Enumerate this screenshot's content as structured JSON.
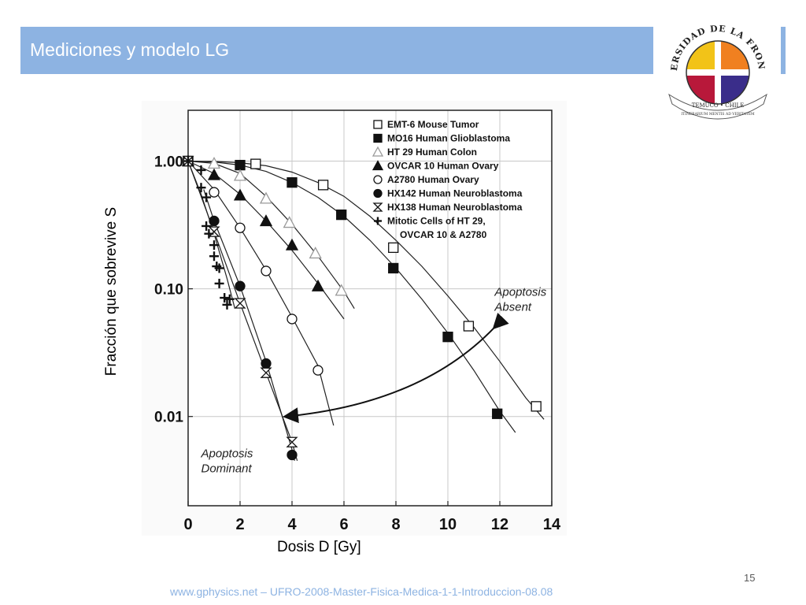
{
  "slide": {
    "title": "Mediciones y modelo LG",
    "page_number": "15",
    "footer": "www.gphysics.net – UFRO-2008-Master-Fisica-Medica-1-1-Introduccion-08.08",
    "title_bar_color": "#8db3e2"
  },
  "logo": {
    "top_text": "UNIVERSIDAD DE LA FRONTERA",
    "bottom_text": "TEMUCO • CHILE",
    "motto": "ITINERARIUM MENTIS AD VERITATEM"
  },
  "chart_data": {
    "type": "scatter",
    "title": "",
    "xlabel": "Dosis D [Gy]",
    "ylabel": "Fracción que sobrevive S",
    "xlim": [
      0,
      14
    ],
    "ylim": [
      0.002,
      2.5
    ],
    "yscale": "log",
    "x_ticks": [
      "0",
      "2",
      "4",
      "6",
      "8",
      "10",
      "12",
      "14"
    ],
    "y_ticks": [
      {
        "value": 1.0,
        "label": "1.00"
      },
      {
        "value": 0.1,
        "label": "0.10"
      },
      {
        "value": 0.01,
        "label": "0.01"
      }
    ],
    "grid": true,
    "legend_position": "top-right",
    "series": [
      {
        "name": "EMT-6 Mouse Tumor",
        "marker": "open-square",
        "x": [
          0,
          2.6,
          5.2,
          7.9,
          10.8,
          13.4
        ],
        "y": [
          1.0,
          0.95,
          0.65,
          0.21,
          0.051,
          0.012
        ],
        "curve": {
          "x": [
            0,
            1,
            2,
            3,
            4,
            5,
            6,
            7,
            8,
            9,
            10,
            11,
            12,
            13,
            13.7
          ],
          "y": [
            1.0,
            0.995,
            0.97,
            0.92,
            0.82,
            0.68,
            0.53,
            0.37,
            0.24,
            0.15,
            0.088,
            0.05,
            0.027,
            0.014,
            0.0095
          ]
        }
      },
      {
        "name": "MO16 Human Glioblastoma",
        "marker": "filled-square",
        "x": [
          0,
          2,
          4,
          5.9,
          7.9,
          10,
          11.9
        ],
        "y": [
          1.0,
          0.93,
          0.68,
          0.38,
          0.145,
          0.042,
          0.0105
        ],
        "curve": {
          "x": [
            0,
            1,
            2,
            3,
            4,
            5,
            6,
            7,
            8,
            9,
            10,
            11,
            12,
            12.6
          ],
          "y": [
            1.0,
            0.985,
            0.93,
            0.83,
            0.68,
            0.52,
            0.37,
            0.24,
            0.145,
            0.083,
            0.045,
            0.023,
            0.011,
            0.0075
          ]
        }
      },
      {
        "name": "HT 29 Human Colon",
        "marker": "open-triangle",
        "x": [
          0,
          1,
          2,
          3,
          3.9,
          4.9,
          5.9
        ],
        "y": [
          1.0,
          0.96,
          0.77,
          0.51,
          0.33,
          0.19,
          0.097
        ],
        "curve": {
          "x": [
            0,
            1,
            2,
            3,
            4,
            5,
            6,
            6.4
          ],
          "y": [
            1.0,
            0.96,
            0.8,
            0.53,
            0.32,
            0.18,
            0.095,
            0.07
          ]
        }
      },
      {
        "name": "OVCAR 10 Human Ovary",
        "marker": "filled-triangle",
        "x": [
          0,
          1,
          2,
          3,
          4,
          5
        ],
        "y": [
          1.0,
          0.78,
          0.54,
          0.34,
          0.22,
          0.105
        ],
        "curve": {
          "x": [
            0,
            1,
            2,
            3,
            4,
            5,
            6
          ],
          "y": [
            1.0,
            0.8,
            0.55,
            0.34,
            0.2,
            0.11,
            0.058
          ]
        }
      },
      {
        "name": "A2780 Human Ovary",
        "marker": "open-circle",
        "x": [
          0,
          1,
          2,
          3,
          4,
          5
        ],
        "y": [
          1.0,
          0.57,
          0.3,
          0.138,
          0.058,
          0.023
        ],
        "curve": {
          "x": [
            0,
            1,
            2,
            3,
            4,
            5,
            5.6
          ],
          "y": [
            1.0,
            0.6,
            0.3,
            0.14,
            0.06,
            0.025,
            0.0085
          ]
        }
      },
      {
        "name": "HX142 Human Neuroblastoma",
        "marker": "filled-circle",
        "x": [
          1,
          2,
          3,
          4
        ],
        "y": [
          0.34,
          0.105,
          0.026,
          0.005
        ],
        "curve": {
          "x": [
            0.6,
            1,
            2,
            3,
            4,
            4.1
          ],
          "y": [
            0.6,
            0.34,
            0.105,
            0.027,
            0.0055,
            0.0045
          ]
        }
      },
      {
        "name": "HX138 Human Neuroblastoma",
        "marker": "hourglass",
        "x": [
          0,
          1,
          2,
          3,
          4
        ],
        "y": [
          1.0,
          0.28,
          0.077,
          0.022,
          0.0063
        ],
        "curve": {
          "x": [
            0,
            1,
            2,
            3,
            4,
            4.2
          ],
          "y": [
            1.0,
            0.28,
            0.077,
            0.022,
            0.0063,
            0.0045
          ]
        }
      },
      {
        "name": "Mitotic Cells of HT 29, OVCAR 10 & A2780",
        "marker": "cross",
        "x": [
          0,
          0.5,
          0.5,
          0.7,
          0.7,
          0.8,
          1,
          1,
          1.1,
          1.2,
          1.2,
          1.4,
          1.5,
          1.6
        ],
        "y": [
          1.0,
          0.85,
          0.62,
          0.52,
          0.31,
          0.27,
          0.22,
          0.18,
          0.15,
          0.145,
          0.11,
          0.085,
          0.075,
          0.083
        ],
        "curve": {
          "x": [
            0,
            0.5,
            1,
            1.5,
            1.8
          ],
          "y": [
            1.0,
            0.55,
            0.27,
            0.12,
            0.07
          ]
        }
      }
    ],
    "legend_lines": [
      {
        "marker": "open-square",
        "label": "EMT-6 Mouse Tumor"
      },
      {
        "marker": "filled-square",
        "label": "MO16 Human Glioblastoma"
      },
      {
        "marker": "open-triangle",
        "label": "HT 29 Human Colon"
      },
      {
        "marker": "filled-triangle",
        "label": "OVCAR 10 Human Ovary"
      },
      {
        "marker": "open-circle",
        "label": "A2780 Human Ovary"
      },
      {
        "marker": "filled-circle",
        "label": "HX142 Human Neuroblastoma"
      },
      {
        "marker": "hourglass",
        "label": "HX138 Human Neuroblastoma"
      },
      {
        "marker": "cross",
        "label": "Mitotic Cells of HT 29,"
      },
      {
        "marker": "",
        "label": "OVCAR 10 & A2780"
      }
    ],
    "annotations": [
      {
        "text": [
          "Apoptosis",
          "Absent"
        ],
        "x": 11.8,
        "y": 0.088
      },
      {
        "text": [
          "Apoptosis",
          "Dominant"
        ],
        "x": 0.5,
        "y": 0.0048
      }
    ],
    "arrow": {
      "from": [
        4,
        0.01
      ],
      "to": [
        11.8,
        0.05
      ]
    }
  }
}
